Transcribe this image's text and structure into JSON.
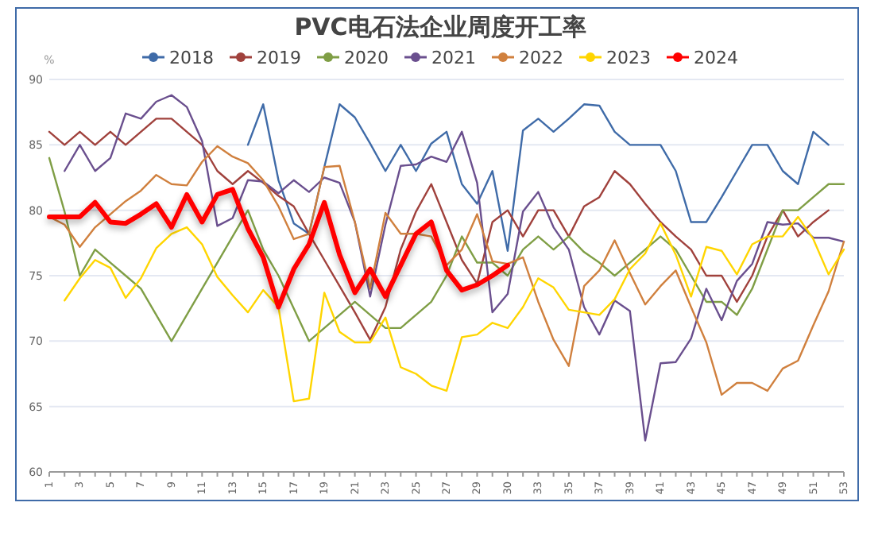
{
  "chart_data": {
    "type": "line",
    "title": "PVC电石法企业周度开工率",
    "ylabel": "%",
    "categories": [
      "1",
      null,
      "3",
      null,
      "5",
      null,
      "7",
      null,
      "9",
      null,
      "11",
      null,
      "13",
      null,
      "15",
      null,
      "17",
      null,
      "19",
      null,
      "21",
      null,
      "23",
      null,
      "25",
      null,
      "27",
      null,
      "29",
      null,
      "30",
      null,
      "33",
      null,
      "35",
      null,
      "37",
      null,
      "39",
      null,
      "41",
      null,
      "43",
      null,
      "45",
      null,
      "47",
      null,
      "49",
      null,
      "51",
      null,
      "53"
    ],
    "ylim": [
      60,
      90
    ],
    "yticks": [
      60,
      65,
      70,
      75,
      80,
      85,
      90
    ],
    "grid": "y",
    "legend": "top",
    "marker": "none",
    "line_style": "solid",
    "series": [
      {
        "name": "2018",
        "color": "#3f6ba8",
        "values": [
          null,
          null,
          null,
          null,
          null,
          null,
          null,
          null,
          null,
          null,
          null,
          null,
          null,
          85,
          88.1,
          82.3,
          79,
          78.2,
          83.3,
          88.1,
          87.1,
          85.1,
          83,
          85,
          83,
          85.1,
          86,
          82,
          80.5,
          83,
          76.9,
          86.1,
          87,
          86,
          87,
          88.1,
          88,
          86,
          85,
          85,
          85,
          83,
          79.1,
          79.1,
          81,
          83,
          85,
          85,
          83,
          82,
          86,
          85,
          null
        ]
      },
      {
        "name": "2019",
        "color": "#a0413c",
        "values": [
          86,
          85,
          86,
          85,
          86,
          85,
          86,
          87,
          87,
          86,
          85,
          83,
          82,
          83,
          82.1,
          81.1,
          80.3,
          78.2,
          76.2,
          74.2,
          72.2,
          70.1,
          72.6,
          77,
          79.9,
          82,
          79.1,
          76.2,
          74.4,
          79.1,
          80,
          78,
          80,
          80,
          78,
          80.3,
          81,
          83,
          82,
          80.5,
          79.1,
          78,
          77,
          75,
          75,
          73,
          75,
          78,
          80,
          78,
          79.1,
          80,
          null
        ]
      },
      {
        "name": "2020",
        "color": "#7f9e45",
        "values": [
          84,
          79.9,
          75,
          77,
          76,
          75,
          74,
          72,
          70,
          72,
          74,
          76,
          78,
          80,
          77,
          75,
          72.5,
          70,
          71,
          72,
          73,
          72,
          71,
          71,
          72,
          73,
          75,
          78,
          76,
          76,
          75,
          77,
          78,
          77,
          78,
          76.8,
          76,
          75,
          76,
          77,
          78,
          77,
          75,
          73,
          73,
          72,
          74,
          77,
          80,
          80,
          81,
          82,
          82
        ]
      },
      {
        "name": "2021",
        "color": "#6a4f8e",
        "values": [
          null,
          83,
          85,
          83,
          84,
          87.4,
          87,
          88.3,
          88.8,
          87.9,
          85.3,
          78.8,
          79.4,
          82.3,
          82.2,
          81.3,
          82.3,
          81.4,
          82.5,
          82.1,
          79.1,
          73.4,
          78.9,
          83.4,
          83.5,
          84.1,
          83.7,
          86,
          82.1,
          72.2,
          73.6,
          79.9,
          81.4,
          78.7,
          77,
          72.6,
          70.5,
          73.1,
          72.3,
          62.4,
          68.3,
          68.4,
          70.2,
          74,
          71.6,
          74.6,
          75.9,
          79.1,
          78.9,
          79,
          77.9,
          77.9,
          77.6
        ]
      },
      {
        "name": "2022",
        "color": "#d0803e",
        "values": [
          79.5,
          78.9,
          77.2,
          78.7,
          79.7,
          80.7,
          81.5,
          82.7,
          82,
          81.9,
          83.7,
          84.9,
          84.1,
          83.6,
          82.3,
          80.3,
          77.8,
          78.2,
          83.3,
          83.4,
          79.1,
          74,
          79.8,
          78.2,
          78.2,
          78,
          75.8,
          77,
          79.7,
          76.1,
          75.9,
          76.4,
          73,
          70.1,
          68.1,
          74.2,
          75.4,
          77.7,
          75.2,
          72.8,
          74.2,
          75.4,
          72.6,
          69.9,
          65.9,
          66.8,
          66.8,
          66.2,
          67.9,
          68.5,
          71.2,
          73.8,
          77.6
        ]
      },
      {
        "name": "2023",
        "color": "#ffd500",
        "values": [
          null,
          73.1,
          74.8,
          76.2,
          75.6,
          73.3,
          74.8,
          77.1,
          78.2,
          78.7,
          77.4,
          74.9,
          73.5,
          72.2,
          73.9,
          72.6,
          65.4,
          65.6,
          73.7,
          70.7,
          69.9,
          69.9,
          71.8,
          68,
          67.5,
          66.6,
          66.2,
          70.3,
          70.5,
          71.4,
          71,
          72.6,
          74.8,
          74.1,
          72.4,
          72.2,
          72,
          73.2,
          75.5,
          76.7,
          79,
          76.6,
          73.4,
          77.2,
          76.9,
          75.1,
          77.4,
          78,
          78,
          79.5,
          77.8,
          75.1,
          77
        ]
      },
      {
        "name": "2024",
        "color": "#ff0000",
        "values": [
          79.5,
          79.5,
          79.5,
          80.6,
          79.1,
          79,
          79.7,
          80.5,
          78.7,
          81.2,
          79.1,
          81.2,
          81.6,
          78.6,
          76.4,
          72.6,
          75.5,
          77.4,
          80.6,
          76.6,
          73.7,
          75.5,
          73.4,
          75.8,
          78.2,
          79.1,
          75.4,
          73.9,
          74.3,
          75,
          75.8,
          null,
          null,
          null,
          null,
          null,
          null,
          null,
          null,
          null,
          null,
          null,
          null,
          null,
          null,
          null,
          null,
          null,
          null,
          null,
          null,
          null,
          null
        ]
      }
    ]
  }
}
